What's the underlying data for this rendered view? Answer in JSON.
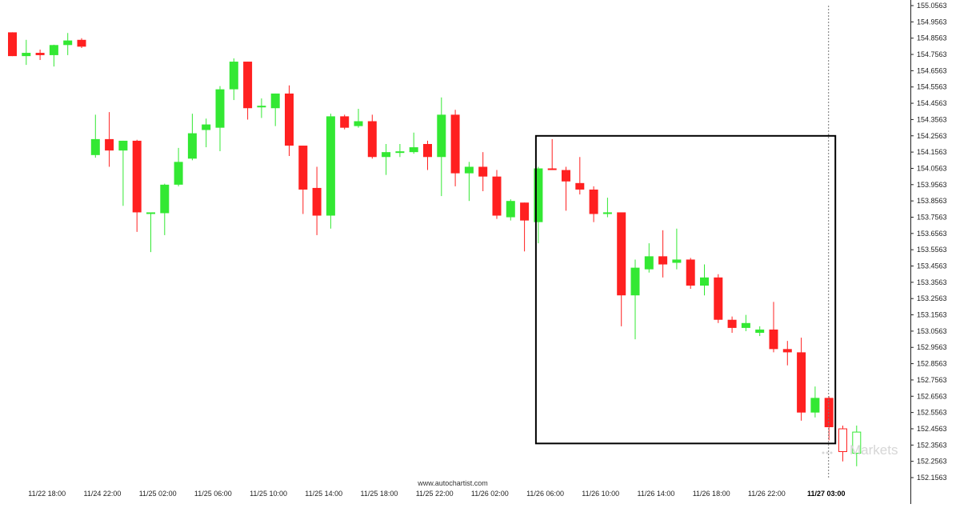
{
  "footer": {
    "site": "www.autochartist.com"
  },
  "watermark": {
    "text": "Markets"
  },
  "colors": {
    "bull": "#33e833",
    "bear": "#ff2020",
    "box": "#000000",
    "vline": "#777777"
  },
  "chart_data": {
    "type": "candlestick",
    "title": "",
    "xlabel": "",
    "ylabel": "",
    "ylim": [
      152.1563,
      155.0563
    ],
    "y_ticks": [
      "155.0563",
      "154.9563",
      "154.8563",
      "154.7563",
      "154.6563",
      "154.5563",
      "154.4563",
      "154.3563",
      "154.2563",
      "154.1563",
      "154.0563",
      "153.9563",
      "153.8563",
      "153.7563",
      "153.6563",
      "153.5563",
      "153.4563",
      "153.3563",
      "153.2563",
      "153.1563",
      "153.0563",
      "152.9563",
      "152.8563",
      "152.7563",
      "152.6563",
      "152.5563",
      "152.4563",
      "152.3563",
      "152.2563",
      "152.1563"
    ],
    "x_labels": [
      {
        "label": "11/22 18:00",
        "index": 2.5
      },
      {
        "label": "11/24 22:00",
        "index": 6.5
      },
      {
        "label": "11/25 02:00",
        "index": 10.5
      },
      {
        "label": "11/25 06:00",
        "index": 14.5
      },
      {
        "label": "11/25 10:00",
        "index": 18.5
      },
      {
        "label": "11/25 14:00",
        "index": 22.5
      },
      {
        "label": "11/25 18:00",
        "index": 26.5
      },
      {
        "label": "11/25 22:00",
        "index": 30.5
      },
      {
        "label": "11/26 02:00",
        "index": 34.5
      },
      {
        "label": "11/26 06:00",
        "index": 38.5
      },
      {
        "label": "11/26 10:00",
        "index": 42.5
      },
      {
        "label": "11/26 14:00",
        "index": 46.5
      },
      {
        "label": "11/26 18:00",
        "index": 50.5
      },
      {
        "label": "11/26 22:00",
        "index": 54.5
      },
      {
        "label": "11/27 03:00",
        "index": 58.8,
        "bold": true
      }
    ],
    "candles": [
      {
        "o": 154.892,
        "h": 154.892,
        "l": 154.746,
        "c": 154.746
      },
      {
        "o": 154.746,
        "h": 154.846,
        "l": 154.692,
        "c": 154.766
      },
      {
        "o": 154.766,
        "h": 154.786,
        "l": 154.722,
        "c": 154.752
      },
      {
        "o": 154.752,
        "h": 154.816,
        "l": 154.682,
        "c": 154.814
      },
      {
        "o": 154.814,
        "h": 154.888,
        "l": 154.752,
        "c": 154.842
      },
      {
        "o": 154.846,
        "h": 154.856,
        "l": 154.796,
        "c": 154.804
      },
      {
        "o": 154.138,
        "h": 154.386,
        "l": 154.122,
        "c": 154.236
      },
      {
        "o": 154.236,
        "h": 154.402,
        "l": 154.066,
        "c": 154.166
      },
      {
        "o": 154.166,
        "h": 154.226,
        "l": 153.826,
        "c": 154.226
      },
      {
        "o": 154.226,
        "h": 154.232,
        "l": 153.666,
        "c": 153.786
      },
      {
        "o": 153.781,
        "h": 153.786,
        "l": 153.542,
        "c": 153.781
      },
      {
        "o": 153.781,
        "h": 153.962,
        "l": 153.646,
        "c": 153.956
      },
      {
        "o": 153.956,
        "h": 154.182,
        "l": 153.946,
        "c": 154.096
      },
      {
        "o": 154.116,
        "h": 154.392,
        "l": 154.106,
        "c": 154.272
      },
      {
        "o": 154.292,
        "h": 154.362,
        "l": 154.186,
        "c": 154.326
      },
      {
        "o": 154.306,
        "h": 154.562,
        "l": 154.162,
        "c": 154.542
      },
      {
        "o": 154.542,
        "h": 154.732,
        "l": 154.476,
        "c": 154.712
      },
      {
        "o": 154.712,
        "h": 154.712,
        "l": 154.356,
        "c": 154.426
      },
      {
        "o": 154.436,
        "h": 154.486,
        "l": 154.366,
        "c": 154.436
      },
      {
        "o": 154.426,
        "h": 154.516,
        "l": 154.316,
        "c": 154.516
      },
      {
        "o": 154.516,
        "h": 154.566,
        "l": 154.132,
        "c": 154.196
      },
      {
        "o": 154.196,
        "h": 154.196,
        "l": 153.776,
        "c": 153.926
      },
      {
        "o": 153.936,
        "h": 154.066,
        "l": 153.646,
        "c": 153.766
      },
      {
        "o": 153.766,
        "h": 154.392,
        "l": 153.686,
        "c": 154.376
      },
      {
        "o": 154.376,
        "h": 154.386,
        "l": 154.296,
        "c": 154.306
      },
      {
        "o": 154.316,
        "h": 154.422,
        "l": 154.306,
        "c": 154.346
      },
      {
        "o": 154.346,
        "h": 154.386,
        "l": 154.116,
        "c": 154.126
      },
      {
        "o": 154.126,
        "h": 154.206,
        "l": 154.016,
        "c": 154.156
      },
      {
        "o": 154.156,
        "h": 154.206,
        "l": 154.126,
        "c": 154.156
      },
      {
        "o": 154.156,
        "h": 154.276,
        "l": 154.146,
        "c": 154.186
      },
      {
        "o": 154.206,
        "h": 154.226,
        "l": 154.046,
        "c": 154.126
      },
      {
        "o": 154.126,
        "h": 154.492,
        "l": 153.886,
        "c": 154.386
      },
      {
        "o": 154.386,
        "h": 154.416,
        "l": 153.946,
        "c": 154.026
      },
      {
        "o": 154.026,
        "h": 154.096,
        "l": 153.856,
        "c": 154.066
      },
      {
        "o": 154.066,
        "h": 154.156,
        "l": 153.916,
        "c": 154.006
      },
      {
        "o": 154.006,
        "h": 154.046,
        "l": 153.746,
        "c": 153.766
      },
      {
        "o": 153.756,
        "h": 153.866,
        "l": 153.736,
        "c": 153.856
      },
      {
        "o": 153.846,
        "h": 153.846,
        "l": 153.546,
        "c": 153.736
      },
      {
        "o": 153.726,
        "h": 154.066,
        "l": 153.596,
        "c": 154.056
      },
      {
        "o": 154.056,
        "h": 154.236,
        "l": 154.046,
        "c": 154.046
      },
      {
        "o": 154.046,
        "h": 154.066,
        "l": 153.796,
        "c": 153.976
      },
      {
        "o": 153.966,
        "h": 154.126,
        "l": 153.896,
        "c": 153.926
      },
      {
        "o": 153.926,
        "h": 153.946,
        "l": 153.726,
        "c": 153.776
      },
      {
        "o": 153.776,
        "h": 153.876,
        "l": 153.756,
        "c": 153.786
      },
      {
        "o": 153.786,
        "h": 153.786,
        "l": 153.086,
        "c": 153.276
      },
      {
        "o": 153.276,
        "h": 153.496,
        "l": 153.006,
        "c": 153.446
      },
      {
        "o": 153.436,
        "h": 153.596,
        "l": 153.416,
        "c": 153.516
      },
      {
        "o": 153.516,
        "h": 153.676,
        "l": 153.386,
        "c": 153.466
      },
      {
        "o": 153.476,
        "h": 153.686,
        "l": 153.436,
        "c": 153.496
      },
      {
        "o": 153.496,
        "h": 153.506,
        "l": 153.316,
        "c": 153.336
      },
      {
        "o": 153.336,
        "h": 153.466,
        "l": 153.276,
        "c": 153.386
      },
      {
        "o": 153.386,
        "h": 153.406,
        "l": 153.106,
        "c": 153.126
      },
      {
        "o": 153.126,
        "h": 153.146,
        "l": 153.046,
        "c": 153.076
      },
      {
        "o": 153.076,
        "h": 153.156,
        "l": 153.056,
        "c": 153.106
      },
      {
        "o": 153.046,
        "h": 153.086,
        "l": 153.026,
        "c": 153.066
      },
      {
        "o": 153.066,
        "h": 153.236,
        "l": 152.926,
        "c": 152.946
      },
      {
        "o": 152.946,
        "h": 152.996,
        "l": 152.846,
        "c": 152.926
      },
      {
        "o": 152.926,
        "h": 153.016,
        "l": 152.506,
        "c": 152.556
      },
      {
        "o": 152.556,
        "h": 152.716,
        "l": 152.526,
        "c": 152.646
      },
      {
        "o": 152.646,
        "h": 152.656,
        "l": 152.386,
        "c": 152.466
      },
      {
        "o": 152.456,
        "h": 152.476,
        "l": 152.256,
        "c": 152.316,
        "style": "outline"
      },
      {
        "o": 152.306,
        "h": 152.476,
        "l": 152.226,
        "c": 152.436,
        "style": "outline"
      }
    ],
    "box": {
      "start_index": 38,
      "end_index": 59,
      "top": 154.256,
      "bottom": 152.366
    },
    "vline_index": 59
  }
}
